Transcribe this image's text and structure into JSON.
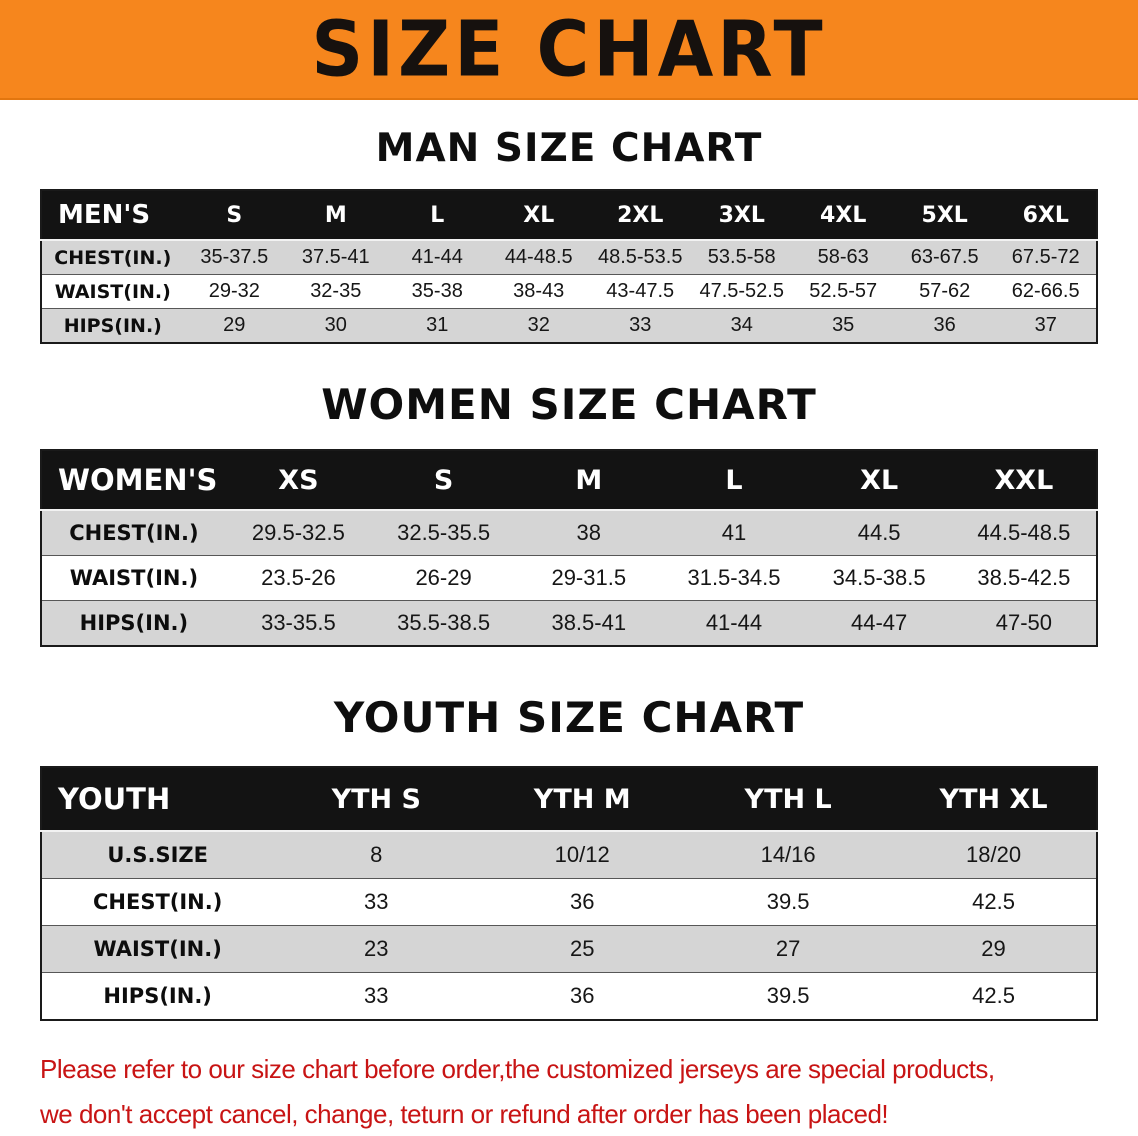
{
  "banner": {
    "title": "SIZE CHART"
  },
  "colors": {
    "banner_orange": "#f6861d",
    "table_header_black": "#131313",
    "stripe_gray": "#d5d5d5",
    "disclaimer_red": "#c81414"
  },
  "chart_data": [
    {
      "type": "table",
      "id": "mens",
      "title": "MAN SIZE CHART",
      "columns": [
        "MEN'S",
        "S",
        "M",
        "L",
        "XL",
        "2XL",
        "3XL",
        "4XL",
        "5XL",
        "6XL"
      ],
      "rows": [
        {
          "label": "CHEST(IN.)",
          "values": [
            "35-37.5",
            "37.5-41",
            "41-44",
            "44-48.5",
            "48.5-53.5",
            "53.5-58",
            "58-63",
            "63-67.5",
            "67.5-72"
          ]
        },
        {
          "label": "WAIST(IN.)",
          "values": [
            "29-32",
            "32-35",
            "35-38",
            "38-43",
            "43-47.5",
            "47.5-52.5",
            "52.5-57",
            "57-62",
            "62-66.5"
          ]
        },
        {
          "label": "HIPS(IN.)",
          "values": [
            "29",
            "30",
            "31",
            "32",
            "33",
            "34",
            "35",
            "36",
            "37"
          ]
        }
      ]
    },
    {
      "type": "table",
      "id": "womens",
      "title": "WOMEN SIZE CHART",
      "columns": [
        "WOMEN'S",
        "XS",
        "S",
        "M",
        "L",
        "XL",
        "XXL"
      ],
      "rows": [
        {
          "label": "CHEST(IN.)",
          "values": [
            "29.5-32.5",
            "32.5-35.5",
            "38",
            "41",
            "44.5",
            "44.5-48.5"
          ]
        },
        {
          "label": "WAIST(IN.)",
          "values": [
            "23.5-26",
            "26-29",
            "29-31.5",
            "31.5-34.5",
            "34.5-38.5",
            "38.5-42.5"
          ]
        },
        {
          "label": "HIPS(IN.)",
          "values": [
            "33-35.5",
            "35.5-38.5",
            "38.5-41",
            "41-44",
            "44-47",
            "47-50"
          ]
        }
      ]
    },
    {
      "type": "table",
      "id": "youth",
      "title": "YOUTH SIZE CHART",
      "columns": [
        "YOUTH",
        "YTH S",
        "YTH M",
        "YTH L",
        "YTH XL"
      ],
      "rows": [
        {
          "label": "U.S.SIZE",
          "values": [
            "8",
            "10/12",
            "14/16",
            "18/20"
          ]
        },
        {
          "label": "CHEST(IN.)",
          "values": [
            "33",
            "36",
            "39.5",
            "42.5"
          ]
        },
        {
          "label": "WAIST(IN.)",
          "values": [
            "23",
            "25",
            "27",
            "29"
          ]
        },
        {
          "label": "HIPS(IN.)",
          "values": [
            "33",
            "36",
            "39.5",
            "42.5"
          ]
        }
      ]
    }
  ],
  "disclaimer": {
    "lines": [
      "Please refer to our size chart before order,the customized jerseys are special products,",
      "we don't accept cancel, change, teturn or refund after order has been placed!"
    ]
  }
}
